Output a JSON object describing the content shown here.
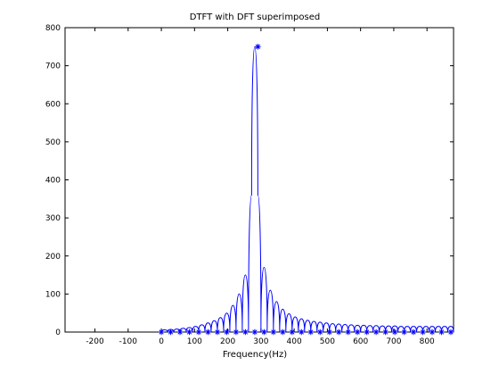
{
  "chart_data": {
    "type": "line",
    "title": "DTFT with DFT superimposed",
    "xlabel": "Frequency(Hz)",
    "ylabel": "",
    "xlim": [
      -290,
      880
    ],
    "ylim": [
      0,
      800
    ],
    "xticks": [
      -200,
      -100,
      0,
      100,
      200,
      300,
      400,
      500,
      600,
      700,
      800
    ],
    "yticks": [
      0,
      100,
      200,
      300,
      400,
      500,
      600,
      700,
      800
    ],
    "grid": false,
    "line_color": "#0000ff",
    "series": [
      {
        "style": "line",
        "x": [
          0,
          9.4,
          18.8,
          28.1,
          37.5,
          46.9,
          56.3,
          65.6,
          75,
          84.4,
          93.8,
          103.1,
          112.5,
          121.9,
          131.3,
          140.6,
          150,
          159.4,
          168.8,
          178.1,
          187.5,
          196.9,
          206.3,
          215.6,
          225,
          234.4,
          243.8,
          253.1,
          262.5,
          271.9,
          281.3,
          290.6,
          300,
          309.4,
          318.8,
          328.1,
          337.5,
          346.9,
          356.3,
          365.6,
          375,
          384.4,
          393.8,
          403.1,
          412.5,
          421.9,
          431.3,
          440.6,
          450,
          459.4,
          468.8,
          478.1,
          487.5,
          496.9,
          506.3,
          515.6,
          525,
          534.4,
          543.8,
          553.1,
          562.5,
          571.9,
          581.3,
          590.6,
          600,
          609.4,
          618.8,
          628.1,
          637.5,
          646.9,
          656.3,
          665.6,
          675,
          684.4,
          693.8,
          703.1,
          712.5,
          721.9,
          731.3,
          740.6,
          750,
          759.4,
          768.8,
          778.1,
          787.5,
          796.9,
          806.3,
          815.6,
          825,
          834.4,
          843.8,
          853.1,
          862.5,
          871.9,
          880
        ],
        "y": [
          0,
          6,
          0,
          7,
          0,
          8,
          0,
          10,
          0,
          12,
          0,
          15,
          0,
          19,
          0,
          24,
          0,
          30,
          0,
          38,
          0,
          50,
          0,
          70,
          0,
          100,
          0,
          150,
          0,
          360,
          750,
          360,
          0,
          170,
          0,
          110,
          0,
          80,
          0,
          60,
          0,
          48,
          0,
          40,
          0,
          35,
          0,
          31,
          0,
          28,
          0,
          26,
          0,
          24,
          0,
          22,
          0,
          21,
          0,
          20,
          0,
          19,
          0,
          18,
          0,
          18,
          0,
          17,
          0,
          17,
          0,
          16,
          0,
          16,
          0,
          16,
          0,
          15,
          0,
          15,
          0,
          15,
          0,
          15,
          0,
          15,
          0,
          15,
          0,
          15,
          0,
          15,
          0,
          15,
          0
        ]
      },
      {
        "style": "markers",
        "marker": "*",
        "x": [
          0,
          28.1,
          56.3,
          84.4,
          112.5,
          140.6,
          168.8,
          196.9,
          225,
          253.1,
          281.3,
          290.6,
          309.4,
          337.5,
          365.6,
          393.8,
          421.9,
          450,
          478.1,
          506.3,
          534.4,
          562.5,
          590.6,
          618.8,
          646.9,
          675,
          703.1,
          731.3,
          759.4,
          787.5,
          815.6,
          843.8,
          871.9
        ],
        "y": [
          0,
          0,
          0,
          0,
          0,
          0,
          0,
          0,
          0,
          0,
          0,
          750,
          0,
          0,
          0,
          0,
          0,
          0,
          0,
          0,
          0,
          0,
          0,
          0,
          0,
          0,
          0,
          0,
          0,
          0,
          0,
          0,
          0
        ]
      }
    ]
  }
}
